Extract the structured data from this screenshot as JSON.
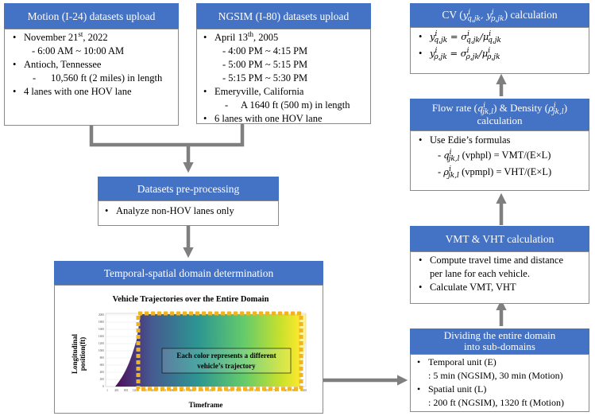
{
  "motion": {
    "header": "Motion (I-24) datasets upload",
    "date_prefix": "November 21",
    "date_sup": "st",
    "date_suffix": ", 2022",
    "time": "- 6:00 AM ~ 10:00 AM",
    "location": "Antioch, Tennessee",
    "length_dash": "-",
    "length": "10,560 ft (2 miles) in length",
    "lanes": "4 lanes with one HOV lane"
  },
  "ngsim": {
    "header": "NGSIM (I-80) datasets upload",
    "date_prefix": "April 13",
    "date_sup": "th",
    "date_suffix": ", 2005",
    "times": [
      "- 4:00 PM ~ 4:15 PM",
      "- 5:00 PM ~ 5:15 PM",
      "- 5:15 PM ~ 5:30 PM"
    ],
    "location": "Emeryville, California",
    "length_dash": "-",
    "length": "A 1640 ft (500 m) in length",
    "lanes": "6 lanes with one HOV lane"
  },
  "preprocess": {
    "header": "Datasets pre-processing",
    "item": "Analyze non-HOV lanes only"
  },
  "temporal": {
    "header": "Temporal-spatial domain determination",
    "plot_title": "Vehicle Trajectories over the Entire Domain",
    "ylabel_1": "Longitudinal",
    "ylabel_2": "position(ft)",
    "xlabel": "Timeframe",
    "yticks": [
      "2000",
      "1800",
      "1600",
      "1400",
      "1200",
      "1000",
      "800",
      "600",
      "400",
      "200",
      "0"
    ],
    "xticks": [
      "1",
      "401",
      "801",
      "1201",
      "1601",
      "2001",
      "2401",
      "2801",
      "3201",
      "3601",
      "4001",
      "4401",
      "4801",
      "5201",
      "5601",
      "6001",
      "6401",
      "6801",
      "7201",
      "7601",
      "8001",
      "8401"
    ],
    "annotation_1": "Each color represents a different",
    "annotation_2": "vehicle’s trajectory"
  },
  "divide": {
    "header_1": "Dividing the entire domain",
    "header_2": "into sub-domains",
    "temporal_label": "Temporal unit (E)",
    "temporal_values": ": 5 min (NGSIM),  30 min (Motion)",
    "spatial_label": "Spatial unit (L)",
    "spatial_values": ": 200 ft (NGSIM), 1320 ft (Motion)"
  },
  "vmt": {
    "header": "VMT & VHT calculation",
    "item1_line1": "Compute travel time and distance",
    "item1_line2": "per lane for each vehicle.",
    "item2": "Calculate VMT, VHT"
  },
  "flow": {
    "header_1a": "Flow rate (",
    "header_q": "q",
    "header_q_sup": "i",
    "header_q_sub": "jk,l",
    "header_1b": ") & Density (",
    "header_rho": "ρ",
    "header_rho_sup": "i",
    "header_rho_sub": "jk,l",
    "header_1c": ")",
    "header_2": "calculation",
    "intro": "Use Edie’s formulas",
    "q_prefix": "- ",
    "q_unit": " (vphpl) = VMT/(E×L)",
    "rho_prefix": "- ",
    "rho_unit": " (vpmpl) = VHT/(E×L)"
  },
  "cv": {
    "header_a": "CV  (",
    "header_b": ") calculation",
    "y": "y",
    "sup": "i",
    "sub_q": "q,jk",
    "sub_p": "p,jk",
    "sub_rho": "ρ,jk",
    "eq": " = ",
    "sigma": "σ",
    "mu": "/μ",
    "comma": ", "
  },
  "colors": {
    "header_blue": "#4472c4",
    "arrow_gray": "#7f7f7f",
    "dashed_orange": "#f2b321"
  }
}
